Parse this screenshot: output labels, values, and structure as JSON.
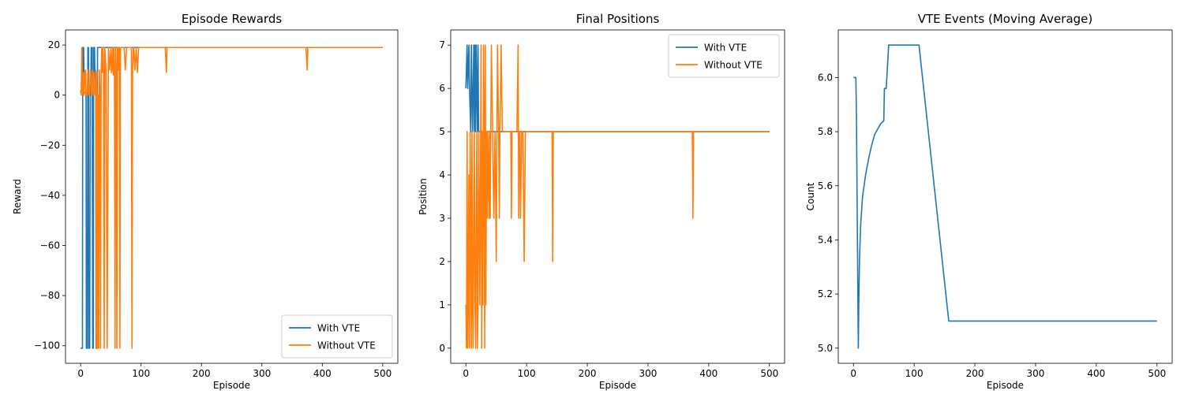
{
  "colors": {
    "with_vte": "#1f77b4",
    "without_vte": "#ff7f0e"
  },
  "chart_data": [
    {
      "type": "line",
      "title": "Episode Rewards",
      "xlabel": "Episode",
      "ylabel": "Reward",
      "xlim": [
        -25,
        525
      ],
      "ylim": [
        -107,
        26
      ],
      "xticks": [
        0,
        100,
        200,
        300,
        400,
        500
      ],
      "yticks": [
        20,
        0,
        -20,
        -40,
        -60,
        -80,
        -100
      ],
      "legend": "lower-right",
      "series": [
        {
          "name": "With VTE",
          "color": "#1f77b4",
          "x": [
            0,
            3,
            3.5,
            5,
            6,
            9,
            9.5,
            11,
            12,
            13,
            13.5,
            15,
            16,
            17,
            17.5,
            19,
            20,
            21,
            21.5,
            23,
            24,
            25,
            25.5,
            27,
            28,
            30,
            30.5,
            500
          ],
          "y": [
            -101,
            -101,
            19,
            19,
            1,
            1,
            -101,
            -101,
            19,
            19,
            -101,
            -101,
            1,
            1,
            19,
            19,
            -101,
            -101,
            19,
            19,
            1,
            1,
            -101,
            -101,
            19,
            19,
            19,
            19
          ]
        },
        {
          "name": "Without VTE",
          "color": "#ff7f0e",
          "x": [
            0,
            1,
            2,
            3,
            4,
            5,
            6,
            7,
            8,
            9,
            10,
            11,
            12,
            13,
            14,
            15,
            16,
            17,
            18,
            19,
            20,
            21,
            22,
            23,
            24,
            25,
            26,
            27,
            28,
            29,
            30,
            31,
            32,
            33,
            34,
            35,
            36,
            37,
            38,
            39,
            40,
            42,
            44,
            46,
            48,
            50,
            51,
            52,
            53,
            54,
            55,
            56,
            57,
            58,
            59,
            60,
            61,
            62,
            63,
            64,
            65,
            66,
            68,
            70,
            72,
            74,
            76,
            78,
            80,
            82,
            84,
            85,
            86,
            87,
            88,
            90,
            92,
            94,
            96,
            97,
            98,
            100,
            102,
            120,
            140,
            142,
            143,
            145,
            370,
            373,
            375,
            376,
            378,
            500
          ],
          "y": [
            2,
            0,
            19,
            2,
            0,
            9,
            0,
            9,
            10,
            0,
            2,
            0,
            10,
            2,
            0,
            1,
            10,
            9,
            0,
            1,
            10,
            0,
            9,
            2,
            0,
            10,
            -101,
            9,
            -101,
            0,
            -101,
            10,
            2,
            -101,
            10,
            19,
            9,
            19,
            10,
            -101,
            19,
            10,
            -101,
            19,
            10,
            19,
            9,
            10,
            19,
            8,
            19,
            10,
            -101,
            19,
            10,
            -101,
            19,
            19,
            10,
            19,
            -101,
            19,
            19,
            19,
            19,
            10,
            19,
            19,
            19,
            19,
            19,
            -101,
            10,
            19,
            19,
            10,
            19,
            9,
            19,
            19,
            19,
            19,
            19,
            19,
            19,
            9,
            19,
            19,
            19,
            19,
            10,
            19,
            19,
            19
          ]
        }
      ]
    },
    {
      "type": "line",
      "title": "Final Positions",
      "xlabel": "Episode",
      "ylabel": "Position",
      "xlim": [
        -25,
        525
      ],
      "ylim": [
        -0.35,
        7.35
      ],
      "xticks": [
        0,
        100,
        200,
        300,
        400,
        500
      ],
      "yticks": [
        0,
        1,
        2,
        3,
        4,
        5,
        6,
        7
      ],
      "legend": "top-right",
      "series": [
        {
          "name": "With VTE",
          "color": "#1f77b4",
          "x": [
            0,
            2,
            3,
            5,
            6,
            8,
            9,
            11,
            12,
            13,
            14,
            15,
            16,
            17,
            18,
            19,
            20,
            21,
            22,
            500
          ],
          "y": [
            6,
            7,
            6,
            7,
            6,
            5,
            7,
            5,
            6,
            7,
            5,
            7,
            5,
            7,
            6,
            5,
            7,
            5,
            5,
            5
          ]
        },
        {
          "name": "Without VTE",
          "color": "#ff7f0e",
          "x": [
            0,
            1,
            2,
            3,
            4,
            5,
            6,
            7,
            8,
            9,
            10,
            11,
            12,
            13,
            14,
            15,
            16,
            17,
            18,
            19,
            20,
            21,
            22,
            23,
            24,
            25,
            26,
            27,
            28,
            29,
            30,
            31,
            32,
            33,
            34,
            35,
            36,
            37,
            38,
            39,
            40,
            42,
            44,
            46,
            48,
            50,
            52,
            54,
            55,
            56,
            58,
            60,
            62,
            64,
            66,
            68,
            70,
            74,
            75,
            76,
            80,
            84,
            86,
            87,
            88,
            89,
            90,
            92,
            94,
            96,
            98,
            100,
            102,
            142,
            143,
            144,
            145,
            373,
            374,
            375,
            376,
            500
          ],
          "y": [
            1,
            0,
            5,
            0,
            1,
            4,
            0,
            5,
            3,
            0,
            5,
            1,
            0,
            3,
            5,
            1,
            0,
            3,
            5,
            0,
            1,
            5,
            3,
            1,
            4,
            7,
            0,
            5,
            1,
            7,
            5,
            0,
            7,
            1,
            5,
            3,
            5,
            4,
            3,
            5,
            3,
            7,
            5,
            3,
            5,
            2,
            7,
            5,
            3,
            5,
            7,
            5,
            5,
            5,
            5,
            5,
            5,
            5,
            3,
            5,
            5,
            5,
            7,
            3,
            5,
            5,
            3,
            5,
            5,
            2,
            5,
            5,
            5,
            5,
            2,
            5,
            5,
            5,
            3,
            5,
            5,
            5
          ]
        }
      ]
    },
    {
      "type": "line",
      "title": "VTE Events (Moving Average)",
      "xlabel": "Episode",
      "ylabel": "Count",
      "xlim": [
        -25,
        525
      ],
      "ylim": [
        4.944,
        6.176
      ],
      "xticks": [
        0,
        100,
        200,
        300,
        400,
        500
      ],
      "yticks": [
        5.0,
        5.2,
        5.4,
        5.6,
        5.8,
        6.0
      ],
      "legend": "none",
      "series": [
        {
          "name": "",
          "color": "#1f77b4",
          "x": [
            0,
            4,
            5,
            8,
            9,
            10,
            12,
            15,
            20,
            25,
            30,
            35,
            40,
            45,
            50,
            51,
            52,
            54,
            56,
            58,
            107,
            108,
            157,
            158,
            500
          ],
          "y": [
            6.0,
            6.0,
            5.84,
            5.0,
            5.2,
            5.33,
            5.46,
            5.56,
            5.64,
            5.7,
            5.75,
            5.79,
            5.81,
            5.83,
            5.84,
            5.96,
            5.96,
            5.96,
            6.04,
            6.12,
            6.12,
            6.12,
            5.1,
            5.1,
            5.1
          ]
        }
      ]
    }
  ]
}
